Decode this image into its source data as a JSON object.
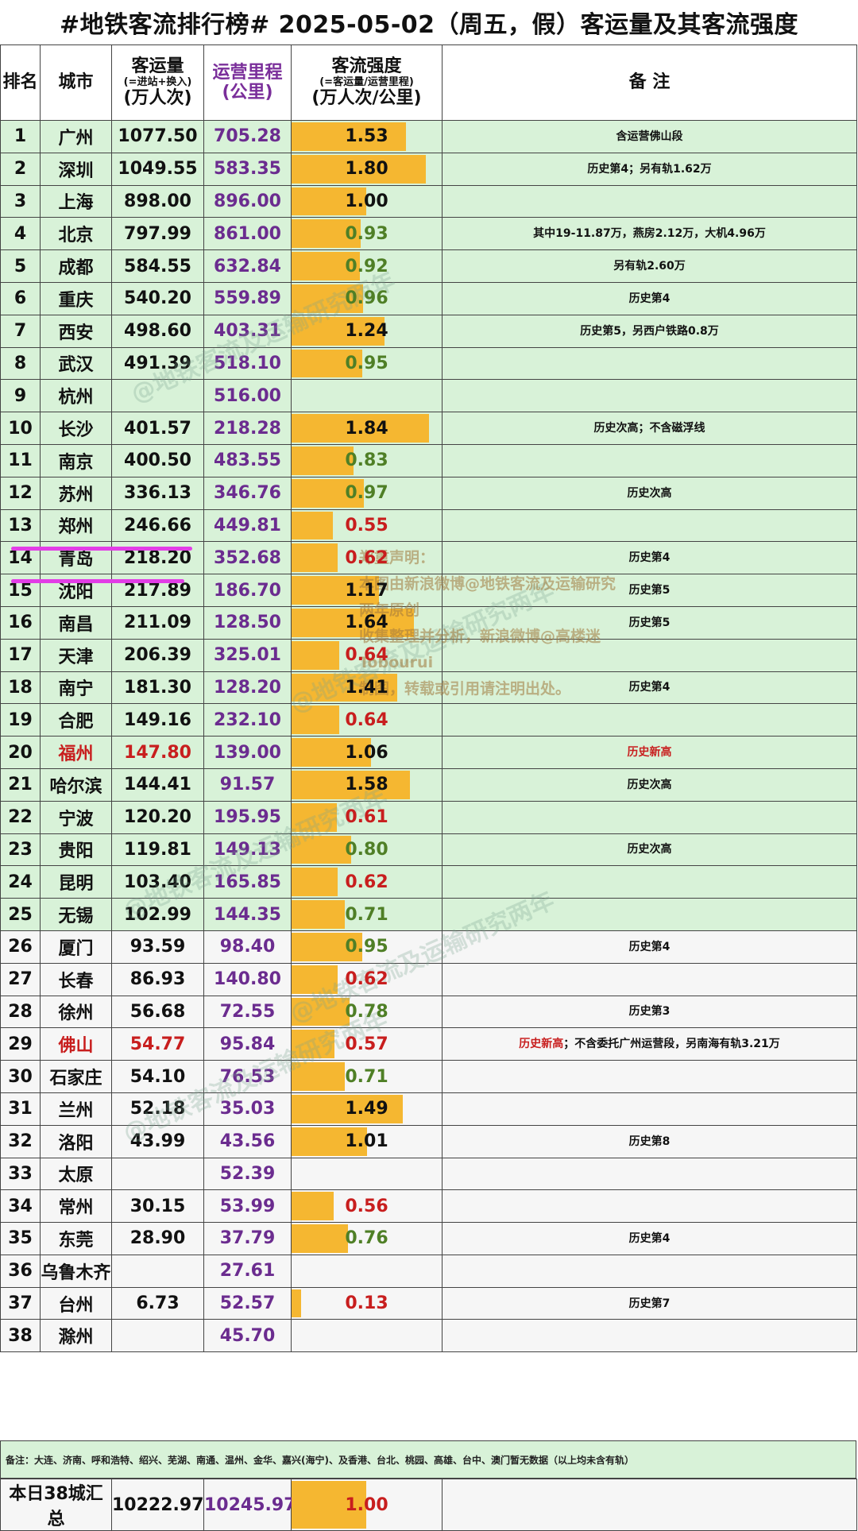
{
  "title": "#地铁客流排行榜# 2025-05-02（周五，假）客运量及其客流强度",
  "headers": {
    "rank": "排名",
    "city": "城市",
    "volume": "客运量",
    "volume_sub": "(=进站+换入)",
    "volume_unit": "(万人次)",
    "length": "运营里程",
    "length_unit": "(公里)",
    "intensity": "客流强度",
    "intensity_sub": "(=客运量/运营里程)",
    "intensity_unit": "(万人次/公里)",
    "note": "备 注"
  },
  "colors": {
    "bar": "#f5b731",
    "green_row": "#d8f2d8",
    "purple_text": "#6b2c8f",
    "red_text": "#c81e1e",
    "highlight": "#e23de6"
  },
  "rows": [
    {
      "rank": "1",
      "city": "广州",
      "volume": "1077.50",
      "length": "705.28",
      "intensity": "1.53",
      "note": "含运营佛山段"
    },
    {
      "rank": "2",
      "city": "深圳",
      "volume": "1049.55",
      "length": "583.35",
      "intensity": "1.80",
      "note": "历史第4；另有轨1.62万"
    },
    {
      "rank": "3",
      "city": "上海",
      "volume": "898.00",
      "length": "896.00",
      "intensity": "1.00",
      "note": ""
    },
    {
      "rank": "4",
      "city": "北京",
      "volume": "797.99",
      "length": "861.00",
      "intensity": "0.93",
      "note": "其中19-11.87万，燕房2.12万，大机4.96万"
    },
    {
      "rank": "5",
      "city": "成都",
      "volume": "584.55",
      "length": "632.84",
      "intensity": "0.92",
      "note": "另有轨2.60万"
    },
    {
      "rank": "6",
      "city": "重庆",
      "volume": "540.20",
      "length": "559.89",
      "intensity": "0.96",
      "note": "历史第4"
    },
    {
      "rank": "7",
      "city": "西安",
      "volume": "498.60",
      "length": "403.31",
      "intensity": "1.24",
      "note": "历史第5，另西户铁路0.8万"
    },
    {
      "rank": "8",
      "city": "武汉",
      "volume": "491.39",
      "length": "518.10",
      "intensity": "0.95",
      "note": ""
    },
    {
      "rank": "9",
      "city": "杭州",
      "volume": "",
      "length": "516.00",
      "intensity": "",
      "note": ""
    },
    {
      "rank": "10",
      "city": "长沙",
      "volume": "401.57",
      "length": "218.28",
      "intensity": "1.84",
      "note": "历史次高；不含磁浮线"
    },
    {
      "rank": "11",
      "city": "南京",
      "volume": "400.50",
      "length": "483.55",
      "intensity": "0.83",
      "note": ""
    },
    {
      "rank": "12",
      "city": "苏州",
      "volume": "336.13",
      "length": "346.76",
      "intensity": "0.97",
      "note": "历史次高"
    },
    {
      "rank": "13",
      "city": "郑州",
      "volume": "246.66",
      "length": "449.81",
      "intensity": "0.55",
      "note": ""
    },
    {
      "rank": "14",
      "city": "青岛",
      "volume": "218.20",
      "length": "352.68",
      "intensity": "0.62",
      "note": "历史第4"
    },
    {
      "rank": "15",
      "city": "沈阳",
      "volume": "217.89",
      "length": "186.70",
      "intensity": "1.17",
      "note": "历史第5"
    },
    {
      "rank": "16",
      "city": "南昌",
      "volume": "211.09",
      "length": "128.50",
      "intensity": "1.64",
      "note": "历史第5"
    },
    {
      "rank": "17",
      "city": "天津",
      "volume": "206.39",
      "length": "325.01",
      "intensity": "0.64",
      "note": ""
    },
    {
      "rank": "18",
      "city": "南宁",
      "volume": "181.30",
      "length": "128.20",
      "intensity": "1.41",
      "note": "历史第4"
    },
    {
      "rank": "19",
      "city": "合肥",
      "volume": "149.16",
      "length": "232.10",
      "intensity": "0.64",
      "note": ""
    },
    {
      "rank": "20",
      "city": "福州",
      "volume": "147.80",
      "length": "139.00",
      "intensity": "1.06",
      "note": "历史新高",
      "red": true
    },
    {
      "rank": "21",
      "city": "哈尔滨",
      "volume": "144.41",
      "length": "91.57",
      "intensity": "1.58",
      "note": "历史次高"
    },
    {
      "rank": "22",
      "city": "宁波",
      "volume": "120.20",
      "length": "195.95",
      "intensity": "0.61",
      "note": ""
    },
    {
      "rank": "23",
      "city": "贵阳",
      "volume": "119.81",
      "length": "149.13",
      "intensity": "0.80",
      "note": "历史次高"
    },
    {
      "rank": "24",
      "city": "昆明",
      "volume": "103.40",
      "length": "165.85",
      "intensity": "0.62",
      "note": ""
    },
    {
      "rank": "25",
      "city": "无锡",
      "volume": "102.99",
      "length": "144.35",
      "intensity": "0.71",
      "note": ""
    },
    {
      "rank": "26",
      "city": "厦门",
      "volume": "93.59",
      "length": "98.40",
      "intensity": "0.95",
      "note": "历史第4"
    },
    {
      "rank": "27",
      "city": "长春",
      "volume": "86.93",
      "length": "140.80",
      "intensity": "0.62",
      "note": ""
    },
    {
      "rank": "28",
      "city": "徐州",
      "volume": "56.68",
      "length": "72.55",
      "intensity": "0.78",
      "note": "历史第3"
    },
    {
      "rank": "29",
      "city": "佛山",
      "volume": "54.77",
      "length": "95.84",
      "intensity": "0.57",
      "note": "历史新高；不含委托广州运营段，另南海有轨3.21万",
      "red": true
    },
    {
      "rank": "30",
      "city": "石家庄",
      "volume": "54.10",
      "length": "76.53",
      "intensity": "0.71",
      "note": ""
    },
    {
      "rank": "31",
      "city": "兰州",
      "volume": "52.18",
      "length": "35.03",
      "intensity": "1.49",
      "note": ""
    },
    {
      "rank": "32",
      "city": "洛阳",
      "volume": "43.99",
      "length": "43.56",
      "intensity": "1.01",
      "note": "历史第8"
    },
    {
      "rank": "33",
      "city": "太原",
      "volume": "",
      "length": "52.39",
      "intensity": "",
      "note": ""
    },
    {
      "rank": "34",
      "city": "常州",
      "volume": "30.15",
      "length": "53.99",
      "intensity": "0.56",
      "note": ""
    },
    {
      "rank": "35",
      "city": "东莞",
      "volume": "28.90",
      "length": "37.79",
      "intensity": "0.76",
      "note": "历史第4"
    },
    {
      "rank": "36",
      "city": "乌鲁木齐",
      "volume": "",
      "length": "27.61",
      "intensity": "",
      "note": ""
    },
    {
      "rank": "37",
      "city": "台州",
      "volume": "6.73",
      "length": "52.57",
      "intensity": "0.13",
      "note": "历史第7"
    },
    {
      "rank": "38",
      "city": "滁州",
      "volume": "",
      "length": "45.70",
      "intensity": "",
      "note": ""
    }
  ],
  "footnote": "备注：大连、济南、呼和浩特、绍兴、芜湖、南通、温州、金华、嘉兴(海宁)、及香港、台北、桃园、高雄、台中、澳门暂无数据（以上均未含有轨）",
  "total": {
    "label": "本日38城汇总",
    "volume": "10222.97",
    "length": "10245.97",
    "intensity": "1.00"
  },
  "copyright": {
    "line1": "郑重声明：",
    "line2": "本图由新浪微博@地铁客流及运输研究两年原创",
    "line3": "收集整理并分析，新浪微博@高楼迷Tobourui",
    "line4": "制图，转载或引用请注明出处。"
  },
  "watermark_text": "@地铁客流及运输研究两年"
}
